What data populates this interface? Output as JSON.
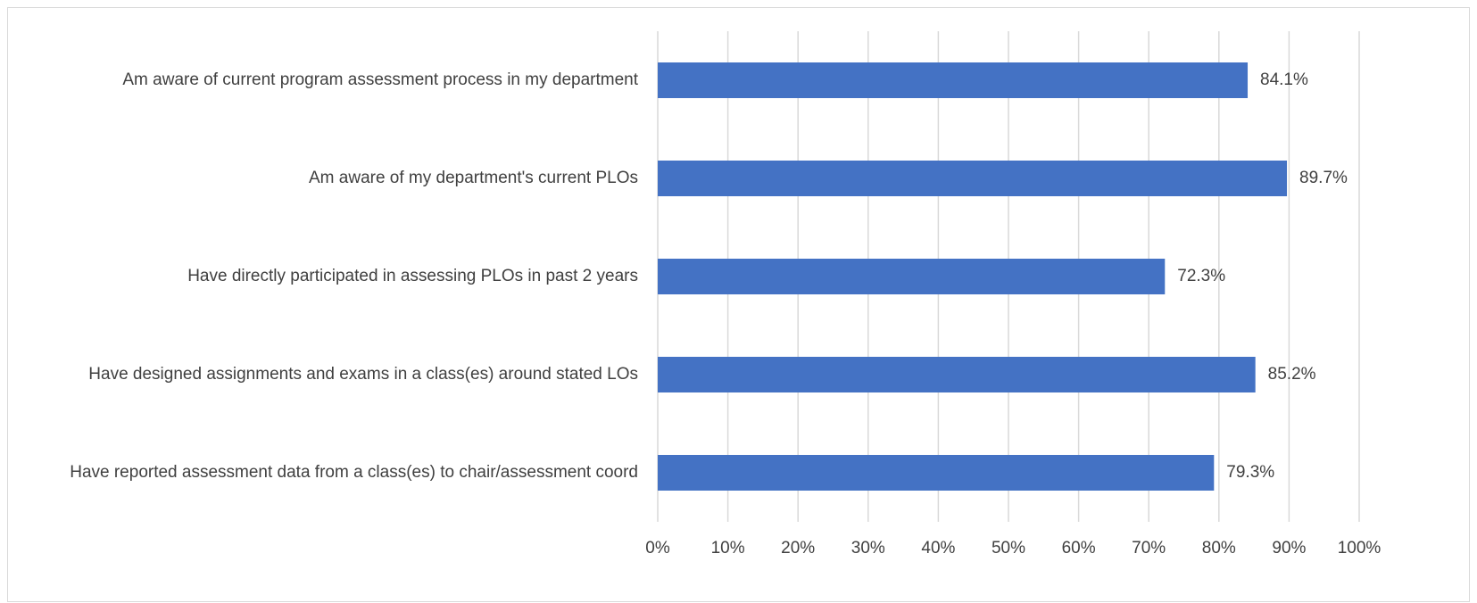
{
  "chart_data": {
    "type": "hbar",
    "categories": [
      "Am aware of current program assessment process in my department",
      "Am aware of my department's current PLOs",
      "Have directly participated in assessing PLOs in past 2 years",
      "Have designed assignments and exams in a class(es) around stated LOs",
      "Have reported assessment data from a class(es) to chair/assessment coord"
    ],
    "values": [
      84.1,
      89.7,
      72.3,
      85.2,
      79.3
    ],
    "value_labels": [
      "84.1%",
      "89.7%",
      "72.3%",
      "85.2%",
      "79.3%"
    ],
    "color": "#4472c4",
    "xlim": [
      0,
      100
    ],
    "xticks": [
      {
        "value": 0,
        "label": "0%"
      },
      {
        "value": 10,
        "label": "10%"
      },
      {
        "value": 20,
        "label": "20%"
      },
      {
        "value": 30,
        "label": "30%"
      },
      {
        "value": 40,
        "label": "40%"
      },
      {
        "value": 50,
        "label": "50%"
      },
      {
        "value": 60,
        "label": "60%"
      },
      {
        "value": 70,
        "label": "70%"
      },
      {
        "value": 80,
        "label": "80%"
      },
      {
        "value": 90,
        "label": "90%"
      },
      {
        "value": 100,
        "label": "100%"
      }
    ],
    "grid": true
  }
}
